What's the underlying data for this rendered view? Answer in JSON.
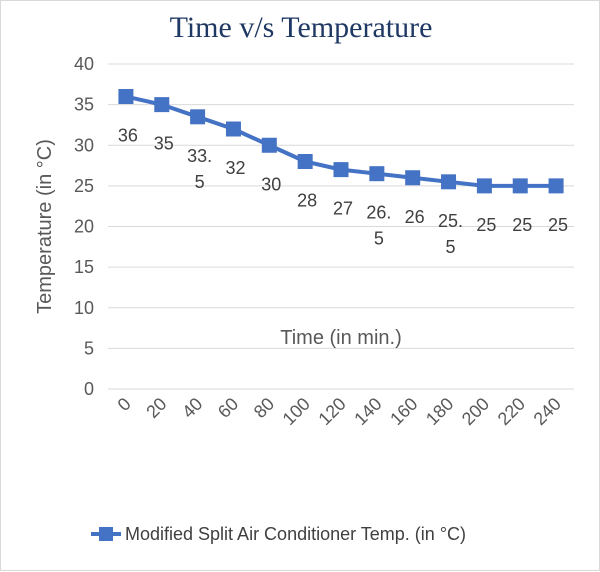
{
  "chart_data": {
    "type": "line",
    "title": "Time v/s Temperature",
    "xlabel": "Time (in min.)",
    "ylabel": "Temperature (in  °C)",
    "x": [
      0,
      20,
      40,
      60,
      80,
      100,
      120,
      140,
      160,
      180,
      200,
      220,
      240
    ],
    "categories": [
      "0",
      "20",
      "40",
      "60",
      "80",
      "100",
      "120",
      "140",
      "160",
      "180",
      "200",
      "220",
      "240"
    ],
    "series": [
      {
        "name": "Modified Split Air Conditioner Temp. (in °C)",
        "values": [
          36,
          35,
          33.5,
          32,
          30,
          28,
          27,
          26.5,
          26,
          25.5,
          25,
          25,
          25
        ],
        "labels": [
          [
            "36"
          ],
          [
            "35"
          ],
          [
            "33.",
            "5"
          ],
          [
            "32"
          ],
          [
            "30"
          ],
          [
            "28"
          ],
          [
            "27"
          ],
          [
            "26.",
            "5"
          ],
          [
            "26"
          ],
          [
            "25.",
            "5"
          ],
          [
            "25"
          ],
          [
            "25"
          ],
          [
            "25"
          ]
        ],
        "color": "#4472c4"
      }
    ],
    "ylim": [
      0,
      40
    ],
    "yticks": [
      "0",
      "5",
      "10",
      "15",
      "20",
      "25",
      "30",
      "35",
      "40"
    ],
    "grid": true,
    "legend": "bottom",
    "gridcolor": "#d9d9d9"
  }
}
